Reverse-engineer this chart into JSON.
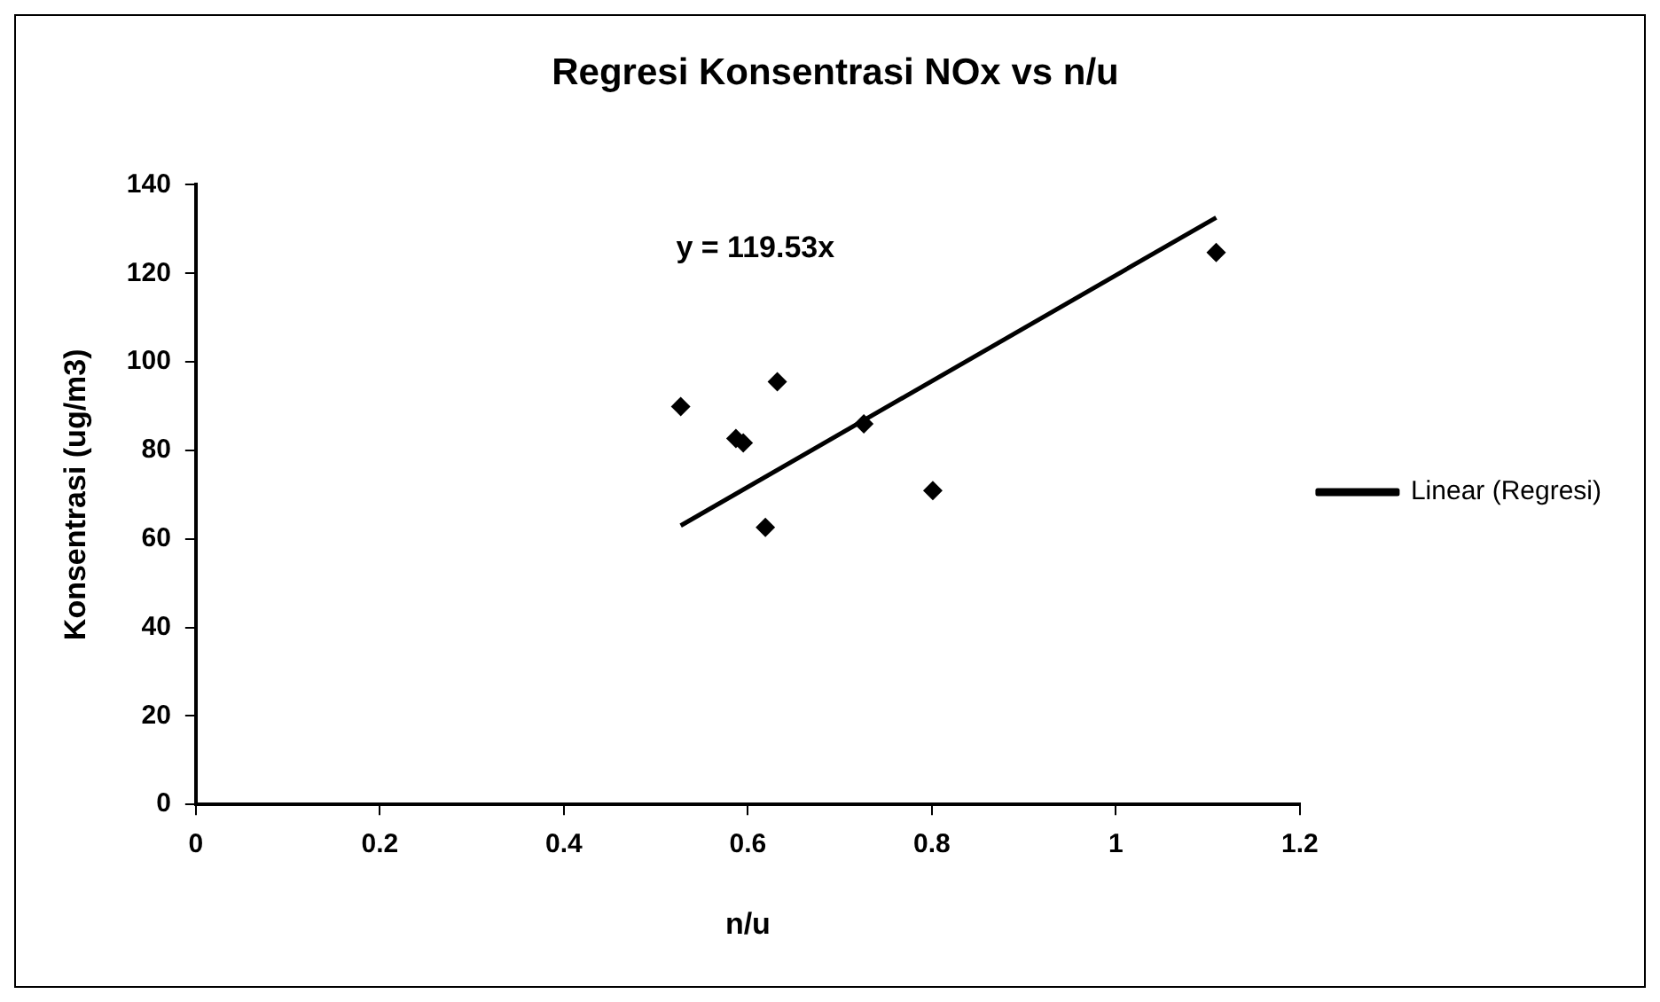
{
  "chart_data": {
    "type": "scatter",
    "title": "Regresi Konsentrasi NOx vs n/u",
    "xlabel": "n/u",
    "ylabel": "Konsentrasi (ug/m3)",
    "annotations": [
      "y = 119.53x"
    ],
    "xlim": [
      0,
      1.2
    ],
    "xticks": [
      0,
      0.2,
      0.4,
      0.6,
      0.8,
      1,
      1.2
    ],
    "ylim": [
      0,
      140
    ],
    "yticks": [
      0,
      20,
      40,
      60,
      80,
      100,
      120,
      140
    ],
    "grid": false,
    "legend": "right",
    "series": [
      {
        "type": "scatter",
        "color": "#000000",
        "marker": "diamond",
        "x": [
          0.527,
          0.587,
          0.595,
          0.632,
          0.619,
          0.726,
          0.801,
          1.109
        ],
        "values": [
          89.9,
          82.7,
          81.7,
          95.5,
          62.6,
          86.0,
          70.9,
          124.7
        ]
      },
      {
        "type": "line",
        "name": "Linear (Regresi)",
        "color": "#000000",
        "marker": "none",
        "line_style": "solid",
        "x": [
          0.527,
          1.109
        ],
        "values": [
          63.0,
          132.6
        ]
      }
    ]
  }
}
